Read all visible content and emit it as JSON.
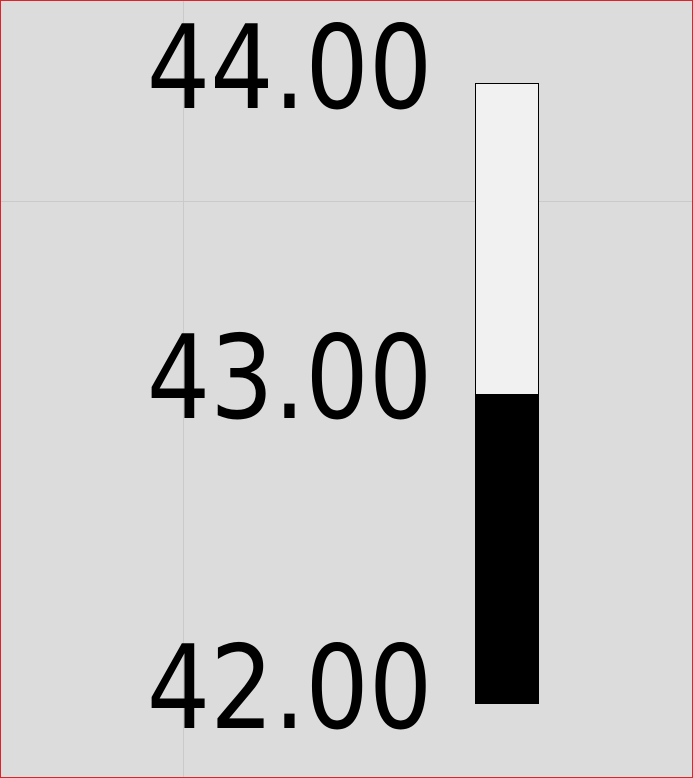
{
  "gauge": {
    "labels": {
      "max": "44.00",
      "mid": "43.00",
      "min": "42.00"
    },
    "range": {
      "min": 42.0,
      "max": 44.0
    },
    "value": 43.0,
    "fill_fraction": 0.5,
    "colors": {
      "background": "#dcdcdc",
      "track": "#f1f1f1",
      "fill": "#000000",
      "frame_border": "#e0222a"
    }
  }
}
